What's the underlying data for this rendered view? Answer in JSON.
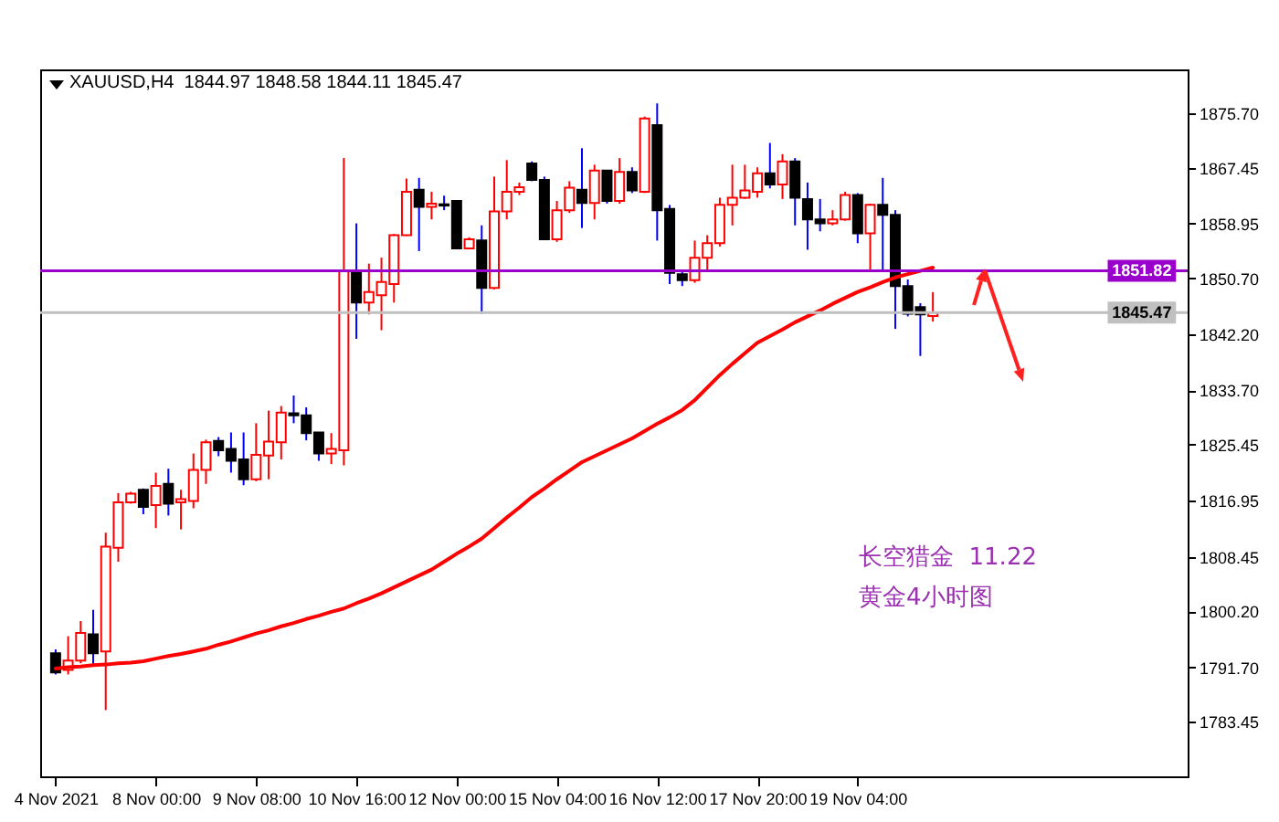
{
  "chart_data": {
    "type": "candlestick",
    "title": "XAUUSD,H4  1844.97 1848.58 1844.11 1845.47",
    "categories": [
      "4 Nov 2021",
      null,
      null,
      null,
      null,
      null,
      null,
      null,
      "8 Nov 00:00",
      null,
      null,
      null,
      null,
      null,
      null,
      null,
      "9 Nov 08:00",
      null,
      null,
      null,
      null,
      null,
      null,
      null,
      "10 Nov 16:00",
      null,
      null,
      null,
      null,
      null,
      null,
      null,
      "12 Nov 00:00",
      null,
      null,
      null,
      null,
      null,
      null,
      null,
      "15 Nov 04:00",
      null,
      null,
      null,
      null,
      null,
      null,
      null,
      "16 Nov 12:00",
      null,
      null,
      null,
      null,
      null,
      null,
      null,
      "17 Nov 20:00",
      null,
      null,
      null,
      null,
      null,
      null,
      null,
      "19 Nov 04:00",
      null,
      null,
      null,
      null,
      null,
      null
    ],
    "ohlc": [
      [
        1793.8,
        1794.4,
        1790.6,
        1790.9
      ],
      [
        1791.3,
        1796.4,
        1790.6,
        1792.7
      ],
      [
        1792.7,
        1798.7,
        1792.3,
        1796.9
      ],
      [
        1796.7,
        1800.4,
        1791.8,
        1793.8
      ],
      [
        1794.1,
        1812.1,
        1785.2,
        1810.0
      ],
      [
        1809.8,
        1818.1,
        1807.7,
        1816.7
      ],
      [
        1816.7,
        1818.3,
        1816.5,
        1818.0
      ],
      [
        1818.6,
        1818.8,
        1814.9,
        1816.0
      ],
      [
        1816.3,
        1821.2,
        1812.8,
        1819.2
      ],
      [
        1819.5,
        1821.8,
        1814.7,
        1816.5
      ],
      [
        1816.7,
        1818.6,
        1812.6,
        1817.2
      ],
      [
        1816.9,
        1824.1,
        1815.8,
        1821.6
      ],
      [
        1821.6,
        1826.2,
        1819.5,
        1825.8
      ],
      [
        1826.0,
        1826.6,
        1823.7,
        1824.6
      ],
      [
        1824.8,
        1827.3,
        1821.2,
        1823.0
      ],
      [
        1823.2,
        1827.3,
        1819.3,
        1820.2
      ],
      [
        1820.2,
        1828.7,
        1819.9,
        1823.9
      ],
      [
        1823.8,
        1830.6,
        1820.2,
        1825.9
      ],
      [
        1825.8,
        1831.3,
        1823.2,
        1830.3
      ],
      [
        1830.2,
        1832.9,
        1828.7,
        1829.9
      ],
      [
        1829.9,
        1831.1,
        1826.1,
        1827.2
      ],
      [
        1827.3,
        1827.3,
        1823.0,
        1824.1
      ],
      [
        1824.1,
        1827.2,
        1822.5,
        1824.8
      ],
      [
        1824.6,
        1868.9,
        1822.3,
        1851.8
      ],
      [
        1851.8,
        1859.0,
        1841.5,
        1847.0
      ],
      [
        1847.0,
        1852.9,
        1845.2,
        1848.6
      ],
      [
        1848.1,
        1853.8,
        1842.8,
        1850.1
      ],
      [
        1849.8,
        1857.4,
        1847.0,
        1857.2
      ],
      [
        1857.2,
        1865.8,
        1857.1,
        1863.8
      ],
      [
        1864.1,
        1865.9,
        1854.8,
        1861.5
      ],
      [
        1861.5,
        1863.8,
        1859.6,
        1862.0
      ],
      [
        1861.9,
        1863.2,
        1861.0,
        1861.7
      ],
      [
        1862.4,
        1862.4,
        1855.2,
        1855.2
      ],
      [
        1855.2,
        1856.9,
        1855.2,
        1856.6
      ],
      [
        1856.4,
        1858.7,
        1845.3,
        1849.2
      ],
      [
        1849.2,
        1866.1,
        1849.0,
        1860.8
      ],
      [
        1860.8,
        1868.6,
        1859.6,
        1863.8
      ],
      [
        1863.8,
        1865.2,
        1863.3,
        1864.5
      ],
      [
        1868.1,
        1868.4,
        1865.4,
        1865.6
      ],
      [
        1865.6,
        1866.1,
        1856.6,
        1856.6
      ],
      [
        1856.6,
        1862.4,
        1856.2,
        1861.0
      ],
      [
        1861.0,
        1865.4,
        1860.6,
        1864.4
      ],
      [
        1864.1,
        1870.4,
        1858.3,
        1862.1
      ],
      [
        1862.1,
        1867.9,
        1859.6,
        1867.0
      ],
      [
        1867.0,
        1867.0,
        1862.0,
        1862.4
      ],
      [
        1862.4,
        1868.9,
        1862.0,
        1866.8
      ],
      [
        1866.8,
        1867.5,
        1863.6,
        1864.0
      ],
      [
        1863.8,
        1875.2,
        1863.6,
        1874.9
      ],
      [
        1873.9,
        1877.2,
        1856.4,
        1861.0
      ],
      [
        1861.2,
        1861.8,
        1849.8,
        1851.5
      ],
      [
        1851.3,
        1852.0,
        1849.5,
        1850.4
      ],
      [
        1850.4,
        1856.4,
        1850.0,
        1853.8
      ],
      [
        1853.8,
        1857.2,
        1851.8,
        1856.0
      ],
      [
        1856.0,
        1862.9,
        1855.5,
        1861.8
      ],
      [
        1861.8,
        1867.9,
        1858.7,
        1862.9
      ],
      [
        1862.9,
        1867.9,
        1862.7,
        1864.0
      ],
      [
        1863.8,
        1867.5,
        1862.9,
        1866.6
      ],
      [
        1866.6,
        1871.2,
        1864.3,
        1864.9
      ],
      [
        1864.9,
        1869.5,
        1862.7,
        1868.4
      ],
      [
        1868.4,
        1868.9,
        1858.7,
        1862.9
      ],
      [
        1862.7,
        1865.2,
        1855.0,
        1859.6
      ],
      [
        1859.6,
        1862.7,
        1857.8,
        1859.0
      ],
      [
        1859.0,
        1861.0,
        1858.7,
        1859.6
      ],
      [
        1859.6,
        1863.8,
        1859.4,
        1863.3
      ],
      [
        1863.3,
        1863.6,
        1856.0,
        1857.5
      ],
      [
        1857.5,
        1862.0,
        1851.8,
        1861.8
      ],
      [
        1861.8,
        1865.9,
        1851.8,
        1860.3
      ],
      [
        1860.3,
        1861.0,
        1843.0,
        1849.5
      ],
      [
        1849.5,
        1850.5,
        1844.9,
        1845.3
      ],
      [
        1846.3,
        1846.9,
        1838.9,
        1845.2
      ],
      [
        1844.97,
        1848.58,
        1844.11,
        1845.47
      ]
    ],
    "series": [
      {
        "type": "line",
        "color": "#ff0000",
        "values": [
          1791.5,
          1791.7,
          1791.8,
          1792.0,
          1792.1,
          1792.3,
          1792.4,
          1792.6,
          1793.0,
          1793.4,
          1793.7,
          1794.1,
          1794.5,
          1795.1,
          1795.6,
          1796.2,
          1796.8,
          1797.3,
          1797.9,
          1798.4,
          1799.0,
          1799.5,
          1800.1,
          1800.6,
          1801.4,
          1802.1,
          1802.9,
          1803.8,
          1804.7,
          1805.6,
          1806.5,
          1807.7,
          1808.9,
          1810.0,
          1811.2,
          1812.8,
          1814.4,
          1815.9,
          1817.5,
          1818.8,
          1820.2,
          1821.5,
          1822.8,
          1823.7,
          1824.6,
          1825.5,
          1826.4,
          1827.5,
          1828.6,
          1829.6,
          1830.7,
          1832.2,
          1834.1,
          1836.0,
          1837.7,
          1839.3,
          1840.9,
          1841.9,
          1842.9,
          1844.0,
          1844.9,
          1845.8,
          1846.8,
          1847.7,
          1848.6,
          1849.3,
          1850.1,
          1850.8,
          1851.3,
          1851.8,
          1852.3
        ]
      }
    ],
    "ylim": [
      1775.15,
      1882.35
    ],
    "yticks": [
      {
        "value": 1875.7,
        "label": "1875.70"
      },
      {
        "value": 1867.45,
        "label": "1867.45"
      },
      {
        "value": 1858.95,
        "label": "1858.95"
      },
      {
        "value": 1850.7,
        "label": "1850.70"
      },
      {
        "value": 1842.2,
        "label": "1842.20"
      },
      {
        "value": 1833.7,
        "label": "1833.70"
      },
      {
        "value": 1825.45,
        "label": "1825.45"
      },
      {
        "value": 1816.95,
        "label": "1816.95"
      },
      {
        "value": 1808.45,
        "label": "1808.45"
      },
      {
        "value": 1800.2,
        "label": "1800.20"
      },
      {
        "value": 1791.7,
        "label": "1791.70"
      },
      {
        "value": 1783.45,
        "label": "1783.45"
      }
    ],
    "ref_lines": [
      {
        "axis": "y",
        "value": 1851.82,
        "label": "1851.82",
        "color": "#9900cc"
      },
      {
        "axis": "y",
        "value": 1845.47,
        "label": "1845.47",
        "color": "#c0c0c0"
      }
    ],
    "annotations": [
      "长空猎金  11.22",
      "黄金4小时图"
    ]
  }
}
